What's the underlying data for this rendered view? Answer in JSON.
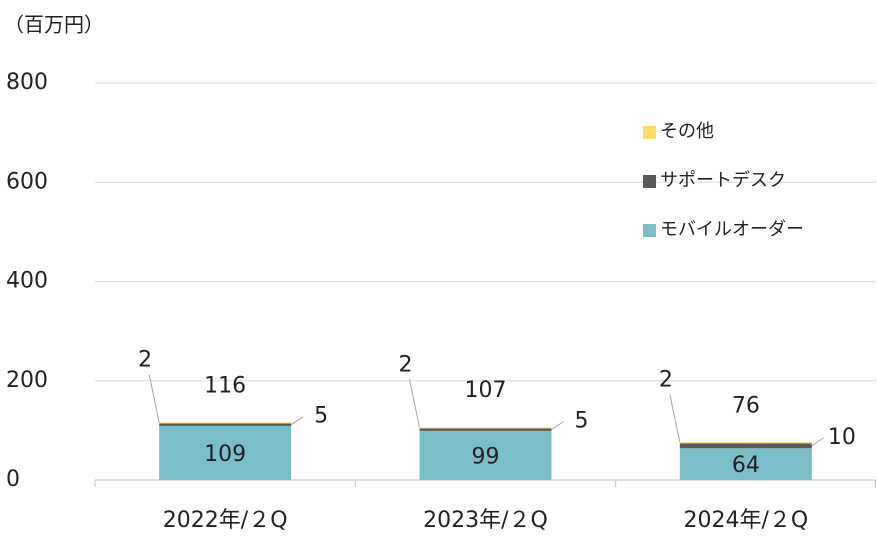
{
  "chart_data": {
    "type": "stacked_bar",
    "y_label": "（百万円）",
    "categories": [
      "2022年/２Q",
      "2023年/２Q",
      "2024年/２Q"
    ],
    "series": [
      {
        "name": "モバイルオーダー",
        "color": "#7bbec9",
        "values": [
          109,
          99,
          64
        ]
      },
      {
        "name": "サポートデスク",
        "color": "#595959",
        "values": [
          5,
          5,
          10
        ]
      },
      {
        "name": "その他",
        "color": "#ffd966",
        "values": [
          2,
          2,
          2
        ]
      }
    ],
    "totals": [
      116,
      107,
      76
    ],
    "ylim": [
      0,
      800
    ],
    "yticks": [
      0,
      200,
      400,
      600,
      800
    ],
    "grid": true,
    "legend": "upper right"
  }
}
